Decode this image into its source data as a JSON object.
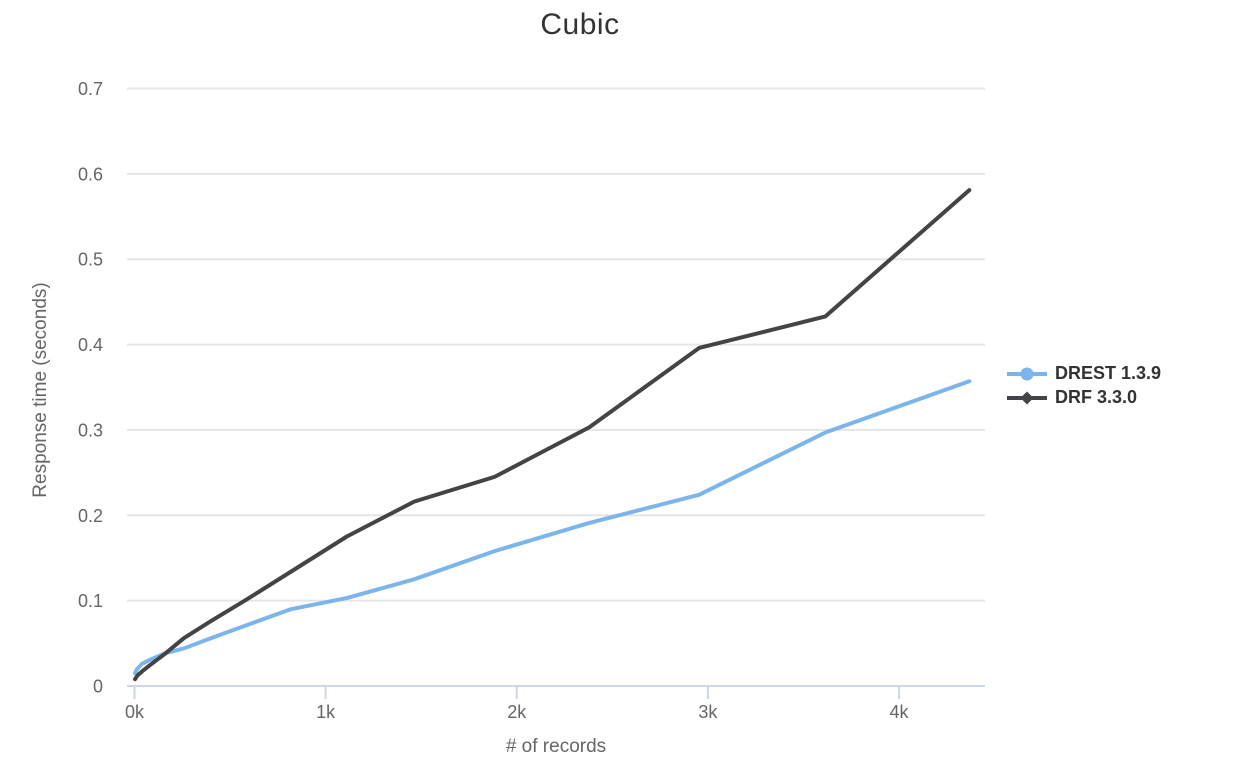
{
  "chart_data": {
    "type": "line",
    "title": "Cubic",
    "xlabel": "# of records",
    "ylabel": "Response time (seconds)",
    "x": [
      3,
      14,
      39,
      84,
      155,
      258,
      399,
      584,
      819,
      1110,
      1463,
      1884,
      2379,
      2954,
      3615,
      4368
    ],
    "series": [
      {
        "name": "DREST 1.3.9",
        "color": "#7cb5ec",
        "marker": "circle",
        "values": [
          0.015,
          0.02,
          0.026,
          0.031,
          0.038,
          0.044,
          0.056,
          0.071,
          0.09,
          0.103,
          0.125,
          0.158,
          0.191,
          0.224,
          0.297,
          0.357
        ]
      },
      {
        "name": "DRF 3.3.0",
        "color": "#434348",
        "marker": "diamond",
        "values": [
          0.008,
          0.012,
          0.017,
          0.025,
          0.037,
          0.056,
          0.076,
          0.101,
          0.134,
          0.175,
          0.216,
          0.245,
          0.303,
          0.396,
          0.433,
          0.581
        ]
      }
    ],
    "xlim": [
      0,
      4450
    ],
    "ylim": [
      0,
      0.7
    ],
    "x_ticks": [
      0,
      1000,
      2000,
      3000,
      4000
    ],
    "x_tick_labels": [
      "0k",
      "1k",
      "2k",
      "3k",
      "4k"
    ],
    "y_ticks": [
      0,
      0.1,
      0.2,
      0.3,
      0.4,
      0.5,
      0.6,
      0.7
    ],
    "y_tick_labels": [
      "0",
      "0.1",
      "0.2",
      "0.3",
      "0.4",
      "0.5",
      "0.6",
      "0.7"
    ],
    "grid": true,
    "legend_position": "right",
    "colors": {
      "grid": "#e6e6e6",
      "axis": "#ccd6eb",
      "tick_label": "#666666",
      "axis_title": "#666666",
      "title": "#333333",
      "legend_text": "#333333",
      "background": "#ffffff"
    }
  }
}
